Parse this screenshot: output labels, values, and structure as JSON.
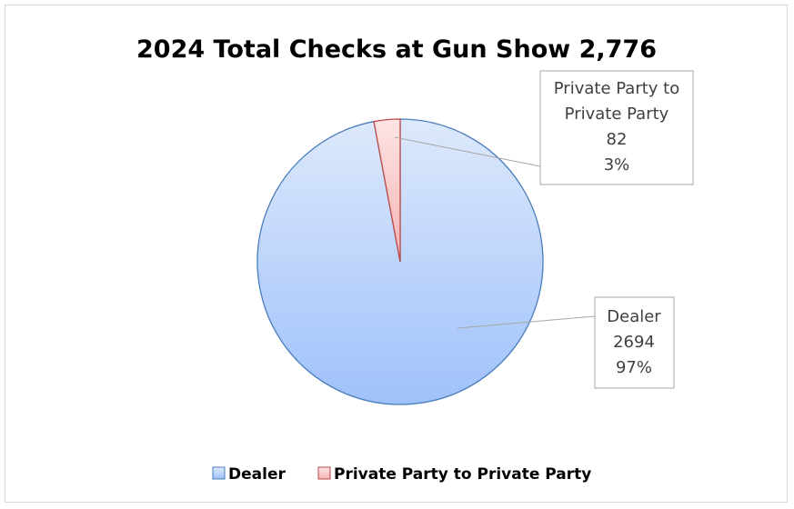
{
  "chart_data": {
    "type": "pie",
    "title": "2024 Total Checks at Gun Show 2,776",
    "total": 2776,
    "slices": [
      {
        "name": "Dealer",
        "value": 2694,
        "percent_label": "97%",
        "value_label": "2694",
        "gradient_top": "#dde9fb",
        "gradient_bottom": "#9fc1fb",
        "stroke": "#4a7ebb"
      },
      {
        "name": "Private Party to Private Party",
        "value": 82,
        "percent_label": "3%",
        "value_label": "82",
        "gradient_top": "#fde4e4",
        "gradient_bottom": "#f5b3b3",
        "stroke": "#be4b48"
      }
    ],
    "start_angle_deg": 0,
    "direction": "clockwise",
    "legend": {
      "position": "bottom",
      "entries": [
        "Dealer",
        "Private Party to Private Party"
      ]
    },
    "callouts": {
      "dealer": [
        "Dealer",
        "2694",
        "97%"
      ],
      "private": [
        "Private Party to",
        "Private Party",
        "82",
        "3%"
      ]
    }
  }
}
